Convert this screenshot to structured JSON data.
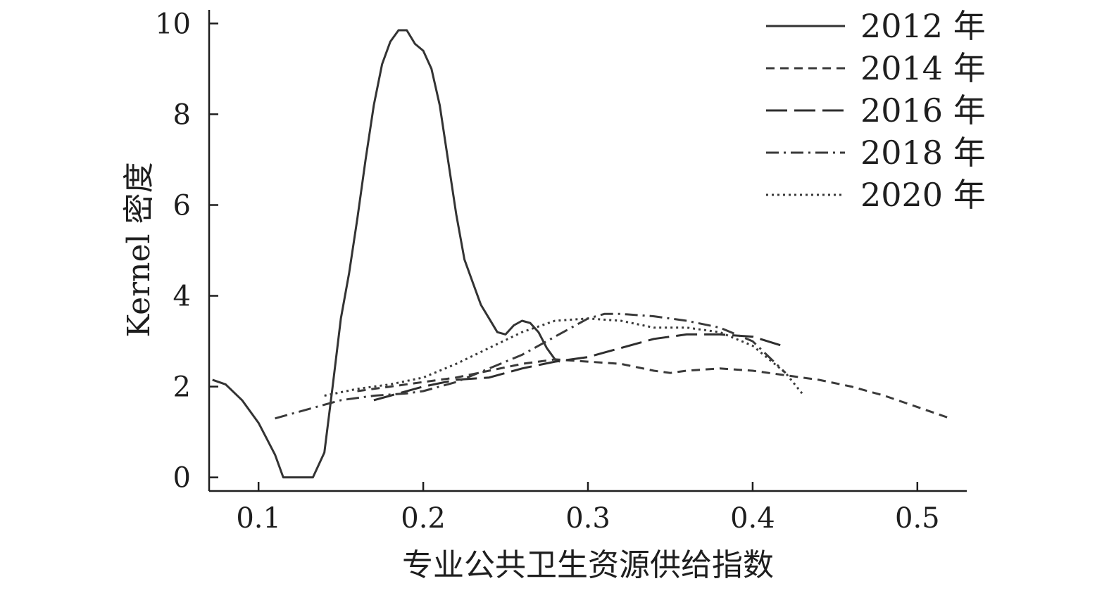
{
  "chart_data": {
    "type": "line",
    "xlabel": "专业公共卫生资源供给指数",
    "ylabel": "Kernel 密度",
    "xlim": [
      0.07,
      0.53
    ],
    "ylim": [
      -0.3,
      10.3
    ],
    "xticks": [
      0.1,
      0.2,
      0.3,
      0.4,
      0.5
    ],
    "xtick_labels": [
      "0.1",
      "0.2",
      "0.3",
      "0.4",
      "0.5"
    ],
    "yticks": [
      0,
      2,
      4,
      6,
      8,
      10
    ],
    "ytick_labels": [
      "0",
      "2",
      "4",
      "6",
      "8",
      "10"
    ],
    "legend_position": "top-right",
    "grid": false,
    "series": [
      {
        "name": "2012 年",
        "style": "solid",
        "color": "#333333",
        "x": [
          0.072,
          0.08,
          0.09,
          0.1,
          0.11,
          0.115,
          0.12,
          0.125,
          0.13,
          0.133,
          0.14,
          0.145,
          0.15,
          0.155,
          0.16,
          0.165,
          0.17,
          0.175,
          0.18,
          0.185,
          0.19,
          0.195,
          0.2,
          0.205,
          0.21,
          0.215,
          0.22,
          0.225,
          0.23,
          0.235,
          0.24,
          0.245,
          0.25,
          0.255,
          0.26,
          0.265,
          0.27,
          0.275,
          0.28,
          0.283
        ],
        "y": [
          2.15,
          2.05,
          1.7,
          1.2,
          0.5,
          0.0,
          0.0,
          0.0,
          0.0,
          0.0,
          0.55,
          2.0,
          3.5,
          4.5,
          5.7,
          7.0,
          8.2,
          9.1,
          9.6,
          9.85,
          9.85,
          9.55,
          9.4,
          9.0,
          8.2,
          7.0,
          5.8,
          4.8,
          4.3,
          3.8,
          3.5,
          3.2,
          3.15,
          3.35,
          3.45,
          3.4,
          3.2,
          2.85,
          2.6,
          2.55
        ]
      },
      {
        "name": "2014 年",
        "style": "dashed",
        "color": "#3a3a3a",
        "x": [
          0.16,
          0.18,
          0.2,
          0.22,
          0.24,
          0.26,
          0.28,
          0.3,
          0.32,
          0.34,
          0.35,
          0.36,
          0.38,
          0.4,
          0.42,
          0.44,
          0.46,
          0.48,
          0.5,
          0.52
        ],
        "y": [
          1.9,
          2.0,
          2.1,
          2.2,
          2.35,
          2.5,
          2.6,
          2.55,
          2.5,
          2.35,
          2.3,
          2.35,
          2.4,
          2.35,
          2.25,
          2.15,
          2.0,
          1.8,
          1.55,
          1.3
        ]
      },
      {
        "name": "2016 年",
        "style": "longdash",
        "color": "#2e2e2e",
        "x": [
          0.17,
          0.18,
          0.2,
          0.22,
          0.24,
          0.26,
          0.28,
          0.3,
          0.32,
          0.34,
          0.36,
          0.38,
          0.4,
          0.418
        ],
        "y": [
          1.7,
          1.8,
          2.0,
          2.15,
          2.2,
          2.4,
          2.55,
          2.65,
          2.85,
          3.05,
          3.15,
          3.15,
          3.1,
          2.9
        ]
      },
      {
        "name": "2018 年",
        "style": "dashdot",
        "color": "#3a3a3a",
        "x": [
          0.11,
          0.13,
          0.15,
          0.17,
          0.19,
          0.2,
          0.22,
          0.24,
          0.26,
          0.28,
          0.3,
          0.31,
          0.32,
          0.34,
          0.36,
          0.38,
          0.4,
          0.42
        ],
        "y": [
          1.3,
          1.5,
          1.7,
          1.8,
          1.85,
          1.9,
          2.1,
          2.4,
          2.7,
          3.1,
          3.5,
          3.6,
          3.6,
          3.55,
          3.45,
          3.3,
          3.0,
          2.3
        ]
      },
      {
        "name": "2020 年",
        "style": "dotted",
        "color": "#3a3a3a",
        "x": [
          0.14,
          0.16,
          0.18,
          0.2,
          0.22,
          0.24,
          0.26,
          0.28,
          0.3,
          0.32,
          0.34,
          0.36,
          0.38,
          0.4,
          0.42,
          0.43
        ],
        "y": [
          1.8,
          1.95,
          2.05,
          2.2,
          2.5,
          2.85,
          3.2,
          3.45,
          3.5,
          3.45,
          3.3,
          3.3,
          3.2,
          2.9,
          2.3,
          1.85
        ]
      }
    ]
  }
}
